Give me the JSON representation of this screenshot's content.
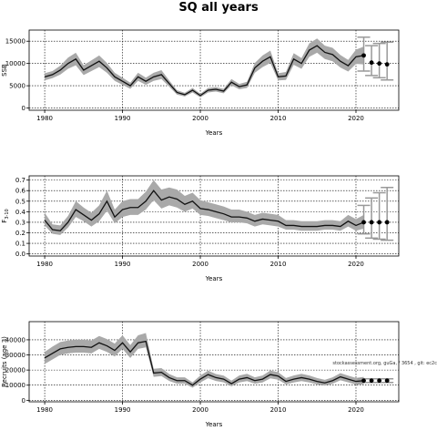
{
  "title": "SQ all years",
  "colors": {
    "band": "#a9a9a9",
    "line": "#111111",
    "forecast": "#999999",
    "grid": "#000000"
  },
  "chart_data": [
    {
      "type": "line",
      "ylabel": "SSB",
      "xlabel": "Years",
      "xlim": [
        1978,
        2025.5
      ],
      "ylim": [
        -500,
        17500
      ],
      "xticks": [
        1980,
        1990,
        2000,
        2010,
        2020
      ],
      "yticks": [
        0,
        5000,
        10000,
        15000
      ],
      "grid": true,
      "years": [
        1980,
        1981,
        1982,
        1983,
        1984,
        1985,
        1986,
        1987,
        1988,
        1989,
        1990,
        1991,
        1992,
        1993,
        1994,
        1995,
        1996,
        1997,
        1998,
        1999,
        2000,
        2001,
        2002,
        2003,
        2004,
        2005,
        2006,
        2007,
        2008,
        2009,
        2010,
        2011,
        2012,
        2013,
        2014,
        2015,
        2016,
        2017,
        2018,
        2019,
        2020,
        2021
      ],
      "values": [
        7000,
        7500,
        8500,
        10000,
        11000,
        8500,
        9500,
        10500,
        9000,
        7000,
        6000,
        5000,
        7000,
        6000,
        7000,
        7500,
        5500,
        3500,
        3000,
        4000,
        2800,
        4000,
        4200,
        3800,
        5800,
        4800,
        5200,
        9000,
        10500,
        11500,
        7000,
        7200,
        11000,
        10000,
        13000,
        14000,
        12500,
        12000,
        10500,
        9500,
        11500,
        11800
      ],
      "lower": [
        6200,
        6700,
        7500,
        8800,
        9600,
        7400,
        8300,
        9200,
        7900,
        6100,
        5200,
        4300,
        6100,
        5200,
        6100,
        6500,
        4800,
        3000,
        2600,
        3500,
        2400,
        3500,
        3700,
        3300,
        5100,
        4200,
        4500,
        7900,
        9200,
        10100,
        6200,
        6300,
        9700,
        8800,
        11500,
        12400,
        11000,
        10500,
        9100,
        8200,
        9900,
        9800
      ],
      "upper": [
        7800,
        8300,
        9500,
        11300,
        12400,
        9600,
        10700,
        11800,
        10100,
        7900,
        6800,
        5700,
        7900,
        6800,
        7900,
        8500,
        6200,
        4000,
        3400,
        4500,
        3200,
        4500,
        4700,
        4300,
        6500,
        5400,
        5900,
        10100,
        11800,
        12900,
        7800,
        8100,
        12300,
        11200,
        14500,
        15600,
        14000,
        13500,
        11900,
        10800,
        13100,
        13800
      ],
      "forecast": {
        "years": [
          2021,
          2022,
          2023,
          2024
        ],
        "median": [
          11800,
          10200,
          10000,
          9800
        ],
        "lower": [
          8300,
          7300,
          6800,
          6300
        ],
        "upper": [
          15900,
          14000,
          14500,
          14800
        ]
      }
    },
    {
      "type": "line",
      "ylabel": "F3-10",
      "ylabel_main": "F",
      "ylabel_sub": "3-10",
      "xlabel": "Years",
      "xlim": [
        1978,
        2025.5
      ],
      "ylim": [
        -0.02,
        0.74
      ],
      "xticks": [
        1980,
        1990,
        2000,
        2010,
        2020
      ],
      "yticks": [
        0.0,
        0.1,
        0.2,
        0.3,
        0.4,
        0.5,
        0.6,
        0.7
      ],
      "ytick_labels": [
        "0.0",
        "0.1",
        "0.2",
        "0.3",
        "0.4",
        "0.5",
        "0.6",
        "0.7"
      ],
      "grid": true,
      "years": [
        1980,
        1981,
        1982,
        1983,
        1984,
        1985,
        1986,
        1987,
        1988,
        1989,
        1990,
        1991,
        1992,
        1993,
        1994,
        1995,
        1996,
        1997,
        1998,
        1999,
        2000,
        2001,
        2002,
        2003,
        2004,
        2005,
        2006,
        2007,
        2008,
        2009,
        2010,
        2011,
        2012,
        2013,
        2014,
        2015,
        2016,
        2017,
        2018,
        2019,
        2020,
        2021
      ],
      "values": [
        0.32,
        0.23,
        0.22,
        0.3,
        0.42,
        0.37,
        0.32,
        0.38,
        0.5,
        0.35,
        0.42,
        0.44,
        0.44,
        0.5,
        0.6,
        0.51,
        0.54,
        0.52,
        0.47,
        0.5,
        0.43,
        0.42,
        0.4,
        0.38,
        0.35,
        0.35,
        0.34,
        0.31,
        0.33,
        0.32,
        0.31,
        0.27,
        0.27,
        0.26,
        0.26,
        0.26,
        0.27,
        0.27,
        0.26,
        0.31,
        0.27,
        0.3
      ],
      "lower": [
        0.27,
        0.19,
        0.18,
        0.25,
        0.35,
        0.31,
        0.26,
        0.31,
        0.41,
        0.29,
        0.35,
        0.37,
        0.37,
        0.42,
        0.51,
        0.43,
        0.46,
        0.44,
        0.4,
        0.43,
        0.37,
        0.36,
        0.34,
        0.32,
        0.3,
        0.3,
        0.29,
        0.26,
        0.28,
        0.27,
        0.26,
        0.23,
        0.23,
        0.22,
        0.22,
        0.22,
        0.23,
        0.23,
        0.22,
        0.26,
        0.22,
        0.24
      ],
      "upper": [
        0.39,
        0.28,
        0.27,
        0.36,
        0.5,
        0.44,
        0.39,
        0.46,
        0.6,
        0.42,
        0.5,
        0.52,
        0.52,
        0.59,
        0.7,
        0.61,
        0.63,
        0.61,
        0.55,
        0.58,
        0.51,
        0.49,
        0.47,
        0.45,
        0.42,
        0.42,
        0.4,
        0.37,
        0.39,
        0.38,
        0.37,
        0.32,
        0.32,
        0.31,
        0.31,
        0.31,
        0.32,
        0.32,
        0.31,
        0.37,
        0.33,
        0.37
      ],
      "forecast": {
        "years": [
          2021,
          2022,
          2023,
          2024
        ],
        "median": [
          0.3,
          0.3,
          0.3,
          0.3
        ],
        "lower": [
          0.19,
          0.15,
          0.14,
          0.13
        ],
        "upper": [
          0.46,
          0.53,
          0.58,
          0.63
        ]
      }
    },
    {
      "type": "line",
      "ylabel": "Recruits (age 3)",
      "xlabel": "Years",
      "xlim": [
        1978,
        2025.5
      ],
      "ylim": [
        -1000,
        52000
      ],
      "xticks": [
        1980,
        1990,
        2000,
        2010,
        2020
      ],
      "yticks": [
        0,
        10000,
        20000,
        30000,
        40000
      ],
      "ytick_labels": [
        "0",
        "10000",
        "20000",
        "30000",
        "40000"
      ],
      "grid": true,
      "years": [
        1980,
        1981,
        1982,
        1983,
        1984,
        1985,
        1986,
        1987,
        1988,
        1989,
        1990,
        1991,
        1992,
        1993,
        1994,
        1995,
        1996,
        1997,
        1998,
        1999,
        2000,
        2001,
        2002,
        2003,
        2004,
        2005,
        2006,
        2007,
        2008,
        2009,
        2010,
        2011,
        2012,
        2013,
        2014,
        2015,
        2016,
        2017,
        2018,
        2019,
        2020,
        2021
      ],
      "values": [
        28000,
        31000,
        34000,
        35000,
        35500,
        35500,
        35000,
        38000,
        36000,
        33000,
        38000,
        32000,
        38000,
        39000,
        18000,
        18500,
        15000,
        13000,
        13000,
        10000,
        14000,
        17000,
        15000,
        14000,
        11000,
        14000,
        15000,
        13000,
        14000,
        17000,
        16000,
        12500,
        14000,
        15000,
        14000,
        12500,
        11500,
        13000,
        15500,
        14000,
        12500,
        13000
      ],
      "lower": [
        24000,
        27000,
        30000,
        31000,
        31500,
        31500,
        31000,
        34000,
        32000,
        29000,
        34000,
        28000,
        34000,
        35000,
        15500,
        16000,
        12800,
        11000,
        11000,
        8300,
        11800,
        14600,
        12800,
        11900,
        9200,
        11800,
        12700,
        11000,
        11800,
        14500,
        13600,
        10500,
        11800,
        12700,
        11800,
        10500,
        9700,
        11000,
        13200,
        11900,
        10400,
        10700
      ],
      "upper": [
        32000,
        35500,
        38500,
        39500,
        40000,
        40000,
        39500,
        42500,
        40500,
        37500,
        43000,
        36500,
        43000,
        44500,
        20800,
        21300,
        17400,
        15200,
        15200,
        11900,
        16400,
        19600,
        17400,
        16300,
        13000,
        16400,
        17500,
        15200,
        16400,
        19700,
        18600,
        14700,
        16400,
        17500,
        16400,
        14700,
        13500,
        15200,
        18000,
        16300,
        14800,
        15500
      ],
      "forecast": {
        "years": [
          2021,
          2022,
          2023,
          2024
        ],
        "median": [
          13000,
          13000,
          13000,
          13000
        ],
        "lower": [
          11800,
          11800,
          11800,
          11800
        ],
        "upper": [
          14200,
          14200,
          14200,
          14200
        ]
      },
      "annotation": "stockassessment.org, guGa, / 3654 , git: ec2c"
    }
  ]
}
